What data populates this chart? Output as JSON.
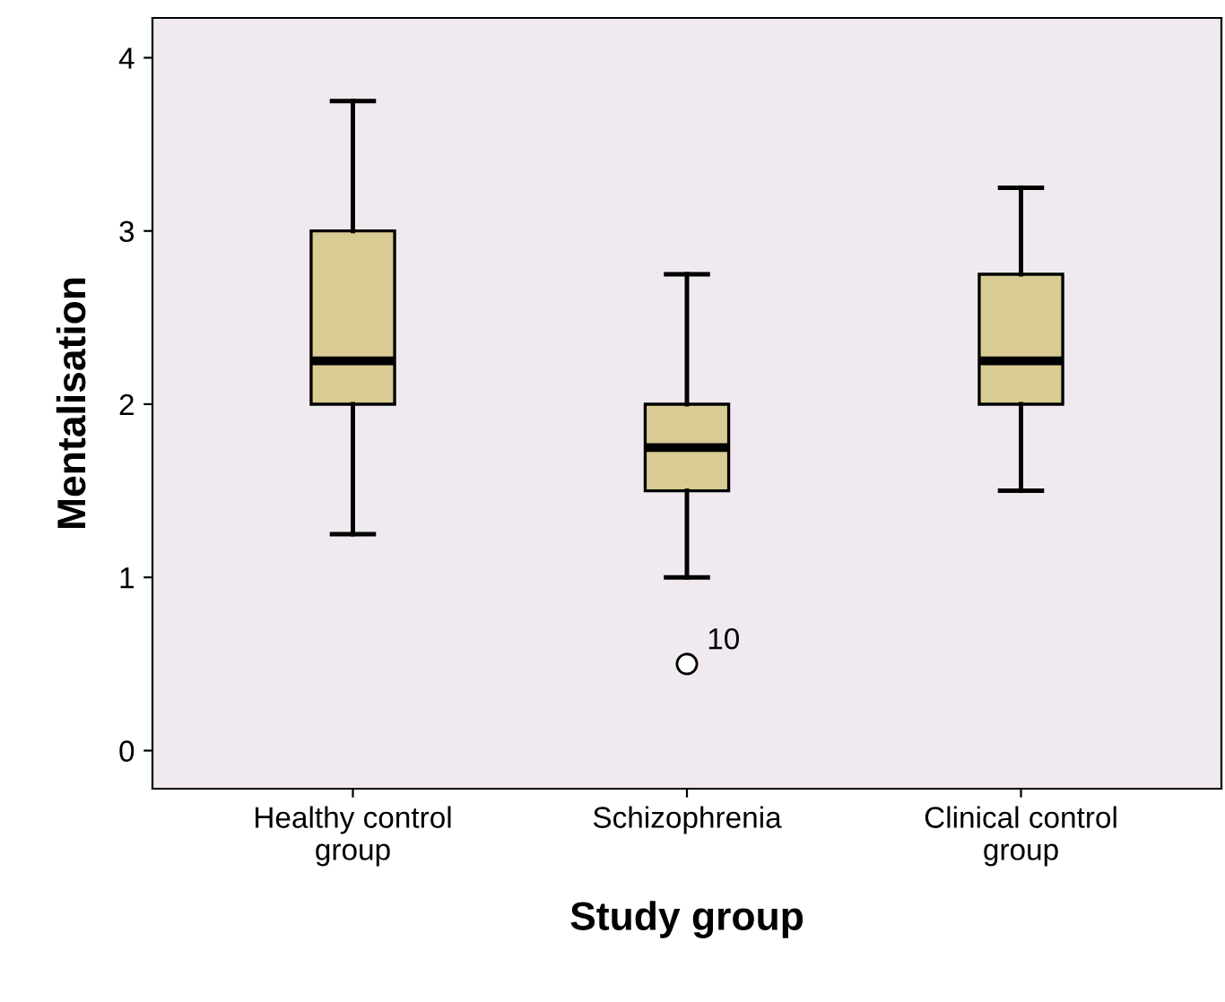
{
  "chart_data": {
    "type": "box",
    "xlabel": "Study group",
    "ylabel": "Mentalisation",
    "categories": [
      "Healthy control\ngroup",
      "Schizophrenia",
      "Clinical control\ngroup"
    ],
    "series": [
      {
        "color": "#d8cc94",
        "boxes": [
          {
            "low": 1.25,
            "q1": 2,
            "median": 2.25,
            "q3": 3,
            "high": 3.75
          },
          {
            "low": 1,
            "q1": 1.5,
            "median": 1.75,
            "q3": 2,
            "high": 2.75,
            "outliers": [
              0.5
            ]
          },
          {
            "low": 1.5,
            "q1": 2,
            "median": 2.25,
            "q3": 2.75,
            "high": 3.25
          }
        ]
      }
    ],
    "annotations": [
      "10"
    ],
    "ylim": [
      -0.22,
      4.23
    ],
    "yticks": [
      0,
      1,
      2,
      3,
      4
    ],
    "grid": false,
    "legend": false
  }
}
